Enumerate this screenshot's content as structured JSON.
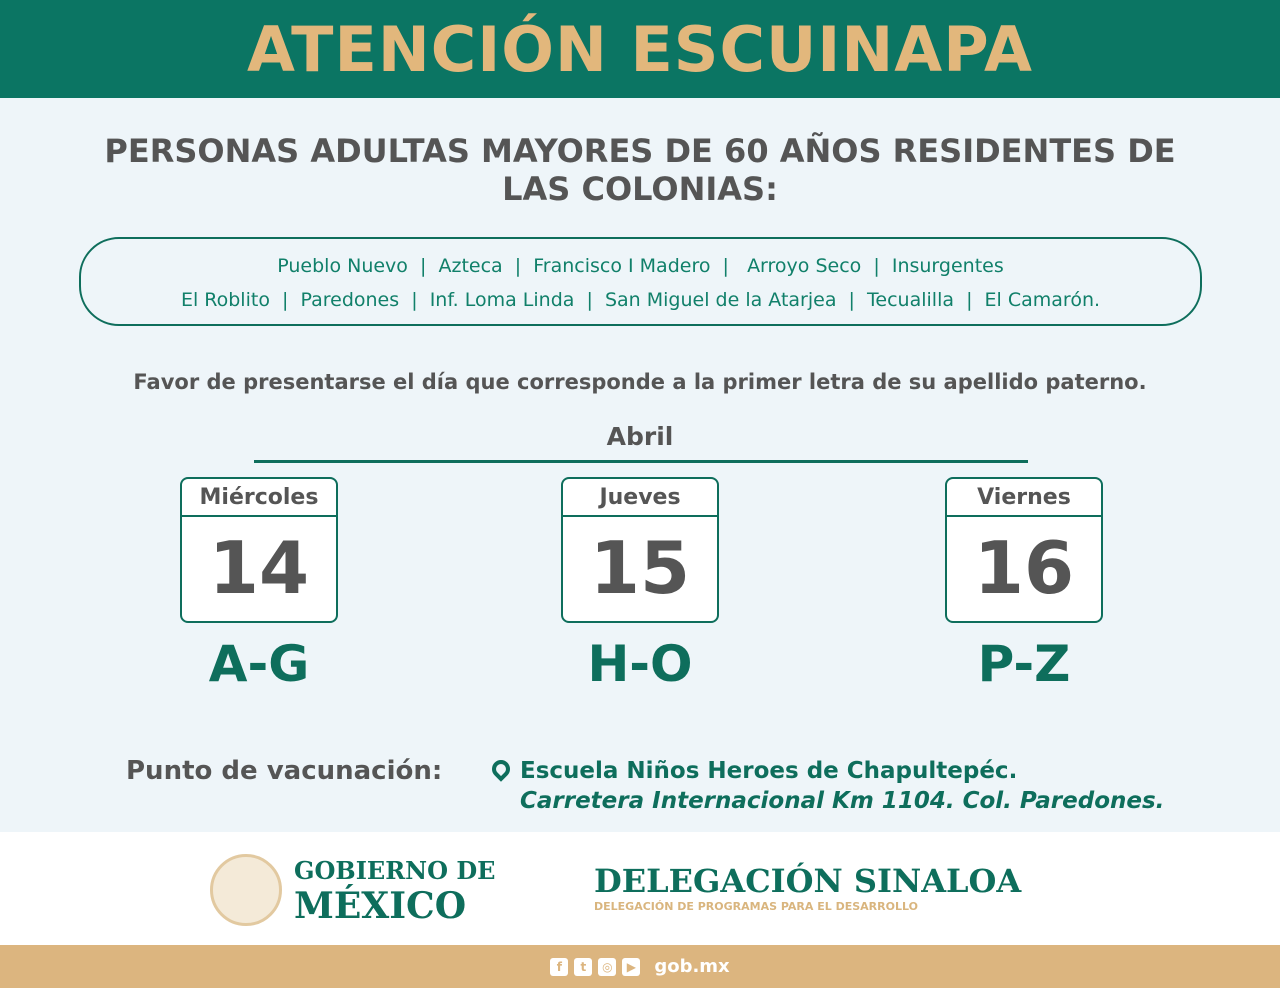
{
  "header": {
    "title": "ATENCIÓN ESCUINAPA"
  },
  "subtitle": {
    "pre": "PERSONAS ",
    "bold": "ADULTAS MAYORES DE 60 AÑOS",
    "post": " RESIDENTES DE",
    "line2": "LAS COLONIAS:"
  },
  "colonias": {
    "line1": "Pueblo Nuevo  |  Azteca  |  Francisco I Madero  |   Arroyo Seco  |  Insurgentes",
    "line2": "El Roblito  |  Paredones  |  Inf. Loma Linda  |  San Miguel de la Atarjea  |  Tecualilla  |  El Camarón."
  },
  "note": "Favor de presentarse el día que corresponde a la primer letra de su apellido paterno.",
  "month": "Abril",
  "days": [
    {
      "name": "Miércoles",
      "num": "14",
      "range": "A-G"
    },
    {
      "name": "Jueves",
      "num": "15",
      "range": "H-O"
    },
    {
      "name": "Viernes",
      "num": "16",
      "range": "P-Z"
    }
  ],
  "punto": {
    "label": "Punto de vacunación:",
    "place": "Escuela Niños Heroes de Chapultepéc.",
    "address": "Carretera Internacional Km 1104. Col. Paredones."
  },
  "footer": {
    "gob_line1": "GOBIERNO DE",
    "gob_line2": "MÉXICO",
    "del_title": "DELEGACIÓN SINALOA",
    "del_sub": "DELEGACIÓN DE PROGRAMAS PARA EL DESARROLLO",
    "web": "gob.mx",
    "icons": [
      "facebook-icon",
      "twitter-icon",
      "instagram-icon",
      "youtube-icon"
    ]
  },
  "colors": {
    "green": "#0b7563",
    "gold": "#e2b77c",
    "text": "#555555"
  }
}
